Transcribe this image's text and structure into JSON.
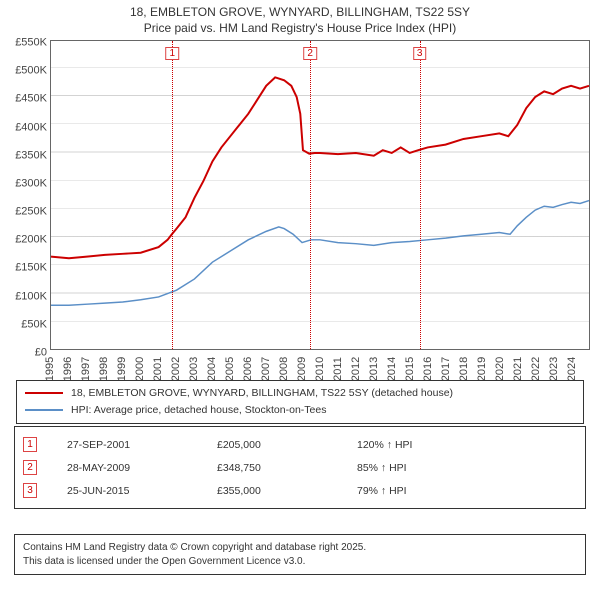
{
  "title_line1": "18, EMBLETON GROVE, WYNYARD, BILLINGHAM, TS22 5SY",
  "title_line2": "Price paid vs. HM Land Registry's House Price Index (HPI)",
  "chart": {
    "type": "line",
    "xlim": [
      1995,
      2025
    ],
    "ylim": [
      0,
      550000
    ],
    "ytick_step": 50000,
    "yticks": [
      "£0",
      "£50K",
      "£100K",
      "£150K",
      "£200K",
      "£250K",
      "£300K",
      "£350K",
      "£400K",
      "£450K",
      "£500K",
      "£550K"
    ],
    "xticks": [
      "1995",
      "1996",
      "1997",
      "1998",
      "1999",
      "2000",
      "2001",
      "2002",
      "2003",
      "2004",
      "2005",
      "2006",
      "2007",
      "2008",
      "2009",
      "2010",
      "2011",
      "2012",
      "2013",
      "2014",
      "2015",
      "2016",
      "2017",
      "2018",
      "2019",
      "2020",
      "2021",
      "2022",
      "2023",
      "2024"
    ],
    "grid_color": "#b0b0b0",
    "background_color": "#ffffff",
    "series": [
      {
        "name": "18, EMBLETON GROVE, WYNYARD, BILLINGHAM, TS22 5SY (detached house)",
        "color": "#cc0000",
        "width": 2,
        "points": [
          [
            1995,
            165000
          ],
          [
            1996,
            162000
          ],
          [
            1997,
            165000
          ],
          [
            1998,
            168000
          ],
          [
            1999,
            170000
          ],
          [
            2000,
            172000
          ],
          [
            2001,
            182000
          ],
          [
            2001.5,
            195000
          ],
          [
            2001.74,
            205000
          ],
          [
            2002,
            215000
          ],
          [
            2002.5,
            235000
          ],
          [
            2003,
            270000
          ],
          [
            2003.5,
            300000
          ],
          [
            2004,
            335000
          ],
          [
            2004.5,
            360000
          ],
          [
            2005,
            380000
          ],
          [
            2005.5,
            400000
          ],
          [
            2006,
            420000
          ],
          [
            2006.5,
            445000
          ],
          [
            2007,
            470000
          ],
          [
            2007.5,
            485000
          ],
          [
            2008,
            480000
          ],
          [
            2008.4,
            470000
          ],
          [
            2008.7,
            450000
          ],
          [
            2008.9,
            420000
          ],
          [
            2009.05,
            355000
          ],
          [
            2009.4,
            348750
          ],
          [
            2009.7,
            350000
          ],
          [
            2010,
            350000
          ],
          [
            2011,
            348000
          ],
          [
            2012,
            350000
          ],
          [
            2013,
            345000
          ],
          [
            2013.5,
            355000
          ],
          [
            2014,
            350000
          ],
          [
            2014.5,
            360000
          ],
          [
            2015,
            350000
          ],
          [
            2015.48,
            355000
          ],
          [
            2016,
            360000
          ],
          [
            2017,
            365000
          ],
          [
            2018,
            375000
          ],
          [
            2019,
            380000
          ],
          [
            2020,
            385000
          ],
          [
            2020.5,
            380000
          ],
          [
            2021,
            400000
          ],
          [
            2021.5,
            430000
          ],
          [
            2022,
            450000
          ],
          [
            2022.5,
            460000
          ],
          [
            2023,
            455000
          ],
          [
            2023.5,
            465000
          ],
          [
            2024,
            470000
          ],
          [
            2024.5,
            465000
          ],
          [
            2025,
            470000
          ]
        ]
      },
      {
        "name": "HPI: Average price, detached house, Stockton-on-Tees",
        "color": "#5b8fc7",
        "width": 1.5,
        "points": [
          [
            1995,
            78000
          ],
          [
            1996,
            78000
          ],
          [
            1997,
            80000
          ],
          [
            1998,
            82000
          ],
          [
            1999,
            84000
          ],
          [
            2000,
            88000
          ],
          [
            2001,
            93000
          ],
          [
            2002,
            105000
          ],
          [
            2003,
            125000
          ],
          [
            2004,
            155000
          ],
          [
            2005,
            175000
          ],
          [
            2006,
            195000
          ],
          [
            2007,
            210000
          ],
          [
            2007.7,
            218000
          ],
          [
            2008,
            215000
          ],
          [
            2008.5,
            205000
          ],
          [
            2009,
            190000
          ],
          [
            2009.5,
            195000
          ],
          [
            2010,
            195000
          ],
          [
            2011,
            190000
          ],
          [
            2012,
            188000
          ],
          [
            2013,
            185000
          ],
          [
            2014,
            190000
          ],
          [
            2015,
            192000
          ],
          [
            2016,
            195000
          ],
          [
            2017,
            198000
          ],
          [
            2018,
            202000
          ],
          [
            2019,
            205000
          ],
          [
            2020,
            208000
          ],
          [
            2020.6,
            205000
          ],
          [
            2021,
            220000
          ],
          [
            2021.5,
            235000
          ],
          [
            2022,
            248000
          ],
          [
            2022.5,
            255000
          ],
          [
            2023,
            253000
          ],
          [
            2023.5,
            258000
          ],
          [
            2024,
            262000
          ],
          [
            2024.5,
            260000
          ],
          [
            2025,
            265000
          ]
        ]
      }
    ],
    "markers": [
      {
        "num": "1",
        "x": 2001.74
      },
      {
        "num": "2",
        "x": 2009.4
      },
      {
        "num": "3",
        "x": 2015.48
      }
    ]
  },
  "legend": {
    "items": [
      {
        "color": "#cc0000",
        "label": "18, EMBLETON GROVE, WYNYARD, BILLINGHAM, TS22 5SY (detached house)"
      },
      {
        "color": "#5b8fc7",
        "label": "HPI: Average price, detached house, Stockton-on-Tees"
      }
    ]
  },
  "events": [
    {
      "num": "1",
      "date": "27-SEP-2001",
      "price": "£205,000",
      "hpi": "120% ↑ HPI"
    },
    {
      "num": "2",
      "date": "28-MAY-2009",
      "price": "£348,750",
      "hpi": "85% ↑ HPI"
    },
    {
      "num": "3",
      "date": "25-JUN-2015",
      "price": "£355,000",
      "hpi": "79% ↑ HPI"
    }
  ],
  "footnote_line1": "Contains HM Land Registry data © Crown copyright and database right 2025.",
  "footnote_line2": "This data is licensed under the Open Government Licence v3.0."
}
